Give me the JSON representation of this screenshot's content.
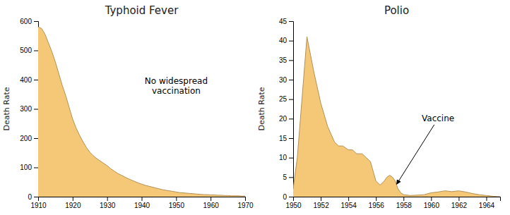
{
  "chart_data": [
    {
      "type": "area",
      "title": "Typhoid Fever",
      "y_label": "Death Rate",
      "color": "#F5C878",
      "xlim": [
        1910,
        1970
      ],
      "ylim": [
        0,
        600
      ],
      "xticks": [
        1910,
        1920,
        1930,
        1940,
        1950,
        1960,
        1970
      ],
      "yticks": [
        0,
        100,
        200,
        300,
        400,
        500,
        600
      ],
      "annotation": "No widespread\nvaccination",
      "x": [
        1910,
        1911,
        1912,
        1913,
        1914,
        1915,
        1916,
        1917,
        1918,
        1919,
        1920,
        1921,
        1922,
        1923,
        1924,
        1925,
        1926,
        1927,
        1928,
        1929,
        1930,
        1931,
        1932,
        1933,
        1934,
        1935,
        1936,
        1937,
        1938,
        1939,
        1940,
        1941,
        1942,
        1943,
        1944,
        1945,
        1946,
        1947,
        1948,
        1949,
        1950,
        1951,
        1952,
        1953,
        1954,
        1955,
        1956,
        1957,
        1958,
        1959,
        1960,
        1961,
        1962,
        1963,
        1964,
        1965,
        1966,
        1967,
        1968,
        1969,
        1970
      ],
      "values": [
        580,
        575,
        555,
        525,
        495,
        460,
        420,
        380,
        345,
        305,
        265,
        235,
        210,
        188,
        168,
        152,
        140,
        130,
        122,
        114,
        106,
        96,
        88,
        80,
        74,
        68,
        62,
        57,
        52,
        47,
        43,
        39,
        36,
        33,
        30,
        27,
        24,
        22,
        20,
        18,
        16,
        14,
        13,
        12,
        11,
        10,
        9,
        8,
        7,
        7,
        6,
        6,
        5,
        5,
        4,
        4,
        3,
        3,
        3,
        2,
        2
      ]
    },
    {
      "type": "area",
      "title": "Polio",
      "y_label": "Death Rate",
      "color": "#F5C878",
      "xlim": [
        1950,
        1965
      ],
      "ylim": [
        0,
        45
      ],
      "xticks": [
        1950,
        1952,
        1954,
        1956,
        1958,
        1960,
        1962,
        1964
      ],
      "yticks": [
        0,
        5,
        10,
        15,
        20,
        25,
        30,
        35,
        40,
        45
      ],
      "annotation": "Vaccine",
      "x": [
        1950,
        1950.3,
        1951.0,
        1951.5,
        1952.0,
        1952.5,
        1953.0,
        1953.3,
        1953.6,
        1954.0,
        1954.3,
        1954.6,
        1955.0,
        1955.3,
        1955.6,
        1956.0,
        1956.3,
        1956.6,
        1956.8,
        1957.0,
        1957.2,
        1957.4,
        1957.5,
        1957.6,
        1957.8,
        1958.0,
        1958.5,
        1959.0,
        1959.5,
        1960.0,
        1960.5,
        1961.0,
        1961.5,
        1962.0,
        1962.5,
        1963.0,
        1963.5,
        1964.0,
        1964.5,
        1965.0
      ],
      "values": [
        2,
        10,
        41,
        32,
        24,
        18,
        14,
        13,
        13,
        12,
        12,
        11,
        11,
        10,
        9,
        4,
        3,
        4,
        5,
        5.5,
        5,
        4,
        3,
        2,
        1,
        0.5,
        0.3,
        0.4,
        0.5,
        1.0,
        1.2,
        1.5,
        1.3,
        1.5,
        1.2,
        0.8,
        0.5,
        0.3,
        0.1,
        0
      ]
    }
  ]
}
